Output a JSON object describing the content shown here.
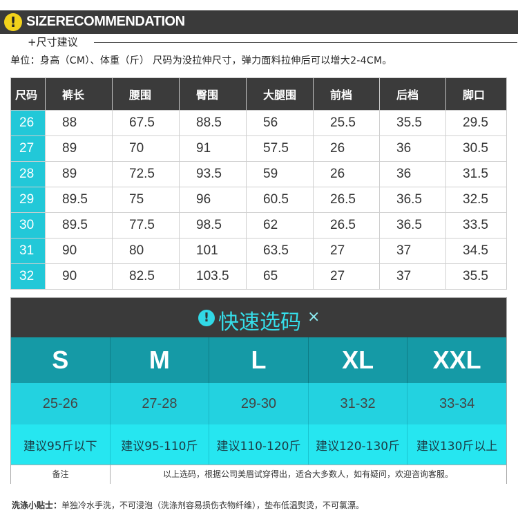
{
  "header": {
    "title": "SIZERECOMMENDATION",
    "subtitle": "+尺寸建议",
    "unit_note": "单位：身高（CM）、体重（斤）  尺码为没拉伸尺寸，弹力面料拉伸后可以增大2-4CM。"
  },
  "size_table": {
    "headers": [
      "尺码",
      "裤长",
      "腰围",
      "臀围",
      "大腿围",
      "前档",
      "后档",
      "脚口"
    ],
    "rows": [
      [
        "26",
        "88",
        "67.5",
        "88.5",
        "56",
        "25.5",
        "35.5",
        "29.5"
      ],
      [
        "27",
        "89",
        "70",
        "91",
        "57.5",
        "26",
        "36",
        "30.5"
      ],
      [
        "28",
        "89",
        "72.5",
        "93.5",
        "59",
        "26",
        "36",
        "31.5"
      ],
      [
        "29",
        "89.5",
        "75",
        "96",
        "60.5",
        "26.5",
        "36.5",
        "32.5"
      ],
      [
        "30",
        "89.5",
        "77.5",
        "98.5",
        "62",
        "26.5",
        "36.5",
        "33.5"
      ],
      [
        "31",
        "90",
        "80",
        "101",
        "63.5",
        "27",
        "37",
        "34.5"
      ],
      [
        "32",
        "90",
        "82.5",
        "103.5",
        "65",
        "27",
        "37",
        "35.5"
      ]
    ]
  },
  "quick_pick": {
    "title": "快速选码",
    "close_glyph": "×",
    "sizes": [
      "S",
      "M",
      "L",
      "XL",
      "XXL"
    ],
    "ranges": [
      "25-26",
      "27-28",
      "29-30",
      "31-32",
      "33-34"
    ],
    "weights": [
      "建议95斤以下",
      "建议95-110斤",
      "建议110-120斤",
      "建议120-130斤",
      "建议130斤以上"
    ],
    "note_label": "备注",
    "note_text": "以上选码，根据公司美眉试穿得出，适合大多数人，如有疑问，欢迎咨询客服。"
  },
  "wash_tip": {
    "label": "洗涤小贴士：",
    "text": "单独冷水手洗，不可浸泡（洗涤剂容易损伤衣物纤维），垫布低温熨烫，不可氯漂。"
  },
  "colors": {
    "accent": "#22c8d8",
    "dark": "#3a3a3a",
    "warn": "#f2d21b"
  }
}
